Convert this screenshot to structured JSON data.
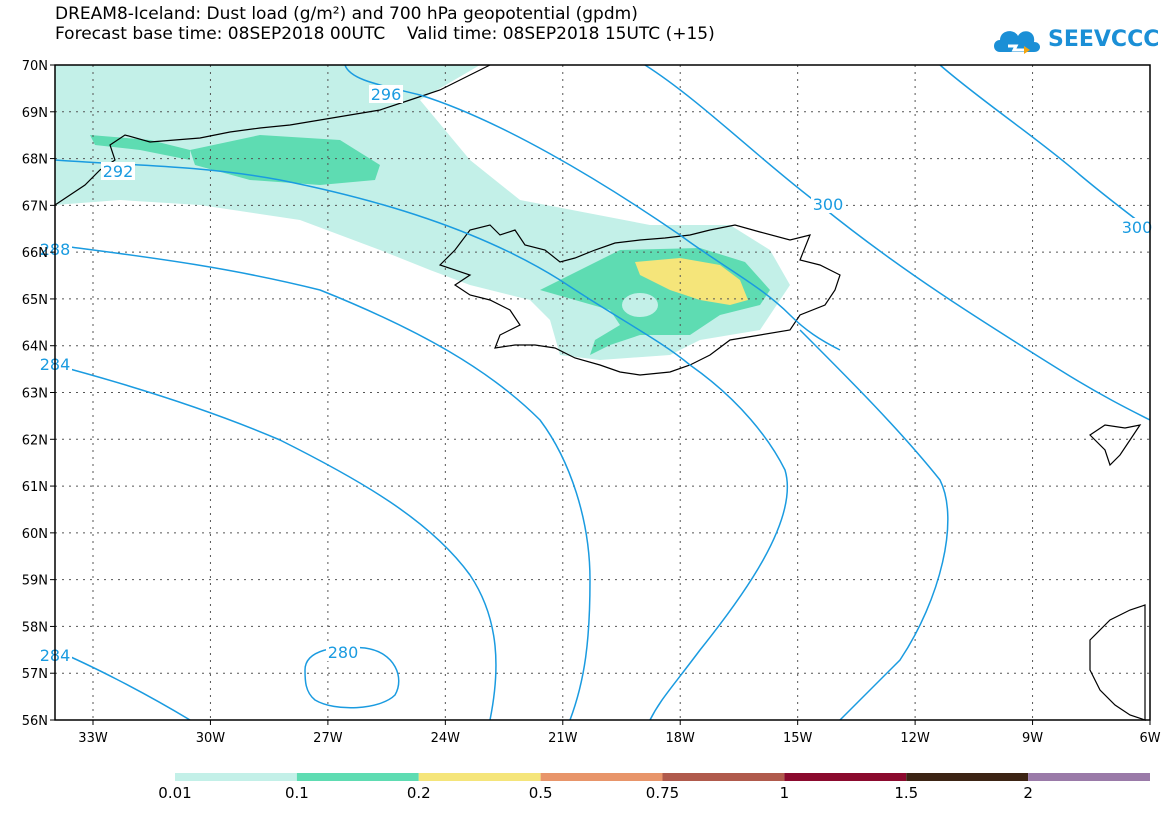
{
  "title": {
    "line1": "DREAM8-Iceland: Dust load (g/m²) and 700 hPa geopotential (gpdm)",
    "line2": "Forecast base time: 08SEP2018 00UTC    Valid time: 08SEP2018 15UTC (+15)"
  },
  "logo": {
    "text": "SEEVCCC",
    "color": "#1b8fd6",
    "icon": "cloud-logo-icon"
  },
  "axes": {
    "lat_labels": [
      "70N",
      "69N",
      "68N",
      "67N",
      "66N",
      "65N",
      "64N",
      "63N",
      "62N",
      "61N",
      "60N",
      "59N",
      "58N",
      "57N",
      "56N"
    ],
    "lon_labels": [
      "33W",
      "30W",
      "27W",
      "24W",
      "21W",
      "18W",
      "15W",
      "12W",
      "9W",
      "6W"
    ],
    "lat_range": [
      56,
      70
    ],
    "lon_range": [
      -34,
      -6
    ]
  },
  "contour_labels": [
    {
      "text": "296"
    },
    {
      "text": "292"
    },
    {
      "text": "288"
    },
    {
      "text": "284"
    },
    {
      "text": "284"
    },
    {
      "text": "280"
    },
    {
      "text": "300"
    },
    {
      "text": "300"
    }
  ],
  "colorbar": {
    "colors": [
      "#c3f0e8",
      "#5edcb2",
      "#f5e57a",
      "#e8956a",
      "#b05a4c",
      "#8b0a2e",
      "#3c2414",
      "#9a7aa8"
    ],
    "labels": [
      "0.01",
      "0.1",
      "0.2",
      "0.5",
      "0.75",
      "1",
      "1.5",
      "2"
    ],
    "contour_color": "#1a9be0"
  }
}
